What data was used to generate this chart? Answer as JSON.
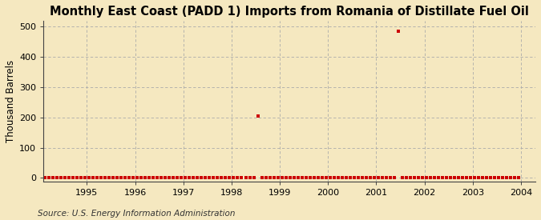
{
  "title": "Monthly East Coast (PADD 1) Imports from Romania of Distillate Fuel Oil",
  "ylabel": "Thousand Barrels",
  "source": "Source: U.S. Energy Information Administration",
  "background_color": "#F5E8C0",
  "plot_bg_color": "#F5E8C0",
  "line_color": "#CC0000",
  "marker": "s",
  "marker_size": 2.5,
  "xlim_left": 1994.1,
  "xlim_right": 2004.3,
  "ylim_bottom": -12,
  "ylim_top": 520,
  "yticks": [
    0,
    100,
    200,
    300,
    400,
    500
  ],
  "xticks": [
    1995,
    1996,
    1997,
    1998,
    1999,
    2000,
    2001,
    2002,
    2003,
    2004
  ],
  "title_fontsize": 10.5,
  "ylabel_fontsize": 8.5,
  "tick_fontsize": 8,
  "source_fontsize": 7.5,
  "data_points": [
    {
      "year": 1994,
      "month": 1,
      "value": 0
    },
    {
      "year": 1994,
      "month": 2,
      "value": 0
    },
    {
      "year": 1994,
      "month": 3,
      "value": 0
    },
    {
      "year": 1994,
      "month": 4,
      "value": 0
    },
    {
      "year": 1994,
      "month": 5,
      "value": 0
    },
    {
      "year": 1994,
      "month": 6,
      "value": 0
    },
    {
      "year": 1994,
      "month": 7,
      "value": 0
    },
    {
      "year": 1994,
      "month": 8,
      "value": 0
    },
    {
      "year": 1994,
      "month": 9,
      "value": 0
    },
    {
      "year": 1994,
      "month": 10,
      "value": 0
    },
    {
      "year": 1994,
      "month": 11,
      "value": 0
    },
    {
      "year": 1994,
      "month": 12,
      "value": 0
    },
    {
      "year": 1995,
      "month": 1,
      "value": 0
    },
    {
      "year": 1995,
      "month": 2,
      "value": 0
    },
    {
      "year": 1995,
      "month": 3,
      "value": 0
    },
    {
      "year": 1995,
      "month": 4,
      "value": 0
    },
    {
      "year": 1995,
      "month": 5,
      "value": 0
    },
    {
      "year": 1995,
      "month": 6,
      "value": 0
    },
    {
      "year": 1995,
      "month": 7,
      "value": 0
    },
    {
      "year": 1995,
      "month": 8,
      "value": 0
    },
    {
      "year": 1995,
      "month": 9,
      "value": 0
    },
    {
      "year": 1995,
      "month": 10,
      "value": 0
    },
    {
      "year": 1995,
      "month": 11,
      "value": 0
    },
    {
      "year": 1995,
      "month": 12,
      "value": 0
    },
    {
      "year": 1996,
      "month": 1,
      "value": 0
    },
    {
      "year": 1996,
      "month": 2,
      "value": 0
    },
    {
      "year": 1996,
      "month": 3,
      "value": 0
    },
    {
      "year": 1996,
      "month": 4,
      "value": 0
    },
    {
      "year": 1996,
      "month": 5,
      "value": 0
    },
    {
      "year": 1996,
      "month": 6,
      "value": 0
    },
    {
      "year": 1996,
      "month": 7,
      "value": 0
    },
    {
      "year": 1996,
      "month": 8,
      "value": 0
    },
    {
      "year": 1996,
      "month": 9,
      "value": 0
    },
    {
      "year": 1996,
      "month": 10,
      "value": 0
    },
    {
      "year": 1996,
      "month": 11,
      "value": 0
    },
    {
      "year": 1996,
      "month": 12,
      "value": 0
    },
    {
      "year": 1997,
      "month": 1,
      "value": 0
    },
    {
      "year": 1997,
      "month": 2,
      "value": 0
    },
    {
      "year": 1997,
      "month": 3,
      "value": 0
    },
    {
      "year": 1997,
      "month": 4,
      "value": 0
    },
    {
      "year": 1997,
      "month": 5,
      "value": 0
    },
    {
      "year": 1997,
      "month": 6,
      "value": 0
    },
    {
      "year": 1997,
      "month": 7,
      "value": 0
    },
    {
      "year": 1997,
      "month": 8,
      "value": 0
    },
    {
      "year": 1997,
      "month": 9,
      "value": 0
    },
    {
      "year": 1997,
      "month": 10,
      "value": 0
    },
    {
      "year": 1997,
      "month": 11,
      "value": 0
    },
    {
      "year": 1997,
      "month": 12,
      "value": 0
    },
    {
      "year": 1998,
      "month": 1,
      "value": 0
    },
    {
      "year": 1998,
      "month": 2,
      "value": 0
    },
    {
      "year": 1998,
      "month": 3,
      "value": 0
    },
    {
      "year": 1998,
      "month": 4,
      "value": 0
    },
    {
      "year": 1998,
      "month": 5,
      "value": 0
    },
    {
      "year": 1998,
      "month": 6,
      "value": 0
    },
    {
      "year": 1998,
      "month": 7,
      "value": 205
    },
    {
      "year": 1998,
      "month": 8,
      "value": 0
    },
    {
      "year": 1998,
      "month": 9,
      "value": 0
    },
    {
      "year": 1998,
      "month": 10,
      "value": 0
    },
    {
      "year": 1998,
      "month": 11,
      "value": 0
    },
    {
      "year": 1998,
      "month": 12,
      "value": 0
    },
    {
      "year": 1999,
      "month": 1,
      "value": 0
    },
    {
      "year": 1999,
      "month": 2,
      "value": 0
    },
    {
      "year": 1999,
      "month": 3,
      "value": 0
    },
    {
      "year": 1999,
      "month": 4,
      "value": 0
    },
    {
      "year": 1999,
      "month": 5,
      "value": 0
    },
    {
      "year": 1999,
      "month": 6,
      "value": 0
    },
    {
      "year": 1999,
      "month": 7,
      "value": 0
    },
    {
      "year": 1999,
      "month": 8,
      "value": 0
    },
    {
      "year": 1999,
      "month": 9,
      "value": 0
    },
    {
      "year": 1999,
      "month": 10,
      "value": 0
    },
    {
      "year": 1999,
      "month": 11,
      "value": 0
    },
    {
      "year": 1999,
      "month": 12,
      "value": 0
    },
    {
      "year": 2000,
      "month": 1,
      "value": 0
    },
    {
      "year": 2000,
      "month": 2,
      "value": 0
    },
    {
      "year": 2000,
      "month": 3,
      "value": 0
    },
    {
      "year": 2000,
      "month": 4,
      "value": 0
    },
    {
      "year": 2000,
      "month": 5,
      "value": 0
    },
    {
      "year": 2000,
      "month": 6,
      "value": 0
    },
    {
      "year": 2000,
      "month": 7,
      "value": 0
    },
    {
      "year": 2000,
      "month": 8,
      "value": 0
    },
    {
      "year": 2000,
      "month": 9,
      "value": 0
    },
    {
      "year": 2000,
      "month": 10,
      "value": 0
    },
    {
      "year": 2000,
      "month": 11,
      "value": 0
    },
    {
      "year": 2000,
      "month": 12,
      "value": 0
    },
    {
      "year": 2001,
      "month": 1,
      "value": 0
    },
    {
      "year": 2001,
      "month": 2,
      "value": 0
    },
    {
      "year": 2001,
      "month": 3,
      "value": 0
    },
    {
      "year": 2001,
      "month": 4,
      "value": 0
    },
    {
      "year": 2001,
      "month": 5,
      "value": 0
    },
    {
      "year": 2001,
      "month": 6,
      "value": 484
    },
    {
      "year": 2001,
      "month": 7,
      "value": 0
    },
    {
      "year": 2001,
      "month": 8,
      "value": 0
    },
    {
      "year": 2001,
      "month": 9,
      "value": 0
    },
    {
      "year": 2001,
      "month": 10,
      "value": 0
    },
    {
      "year": 2001,
      "month": 11,
      "value": 0
    },
    {
      "year": 2001,
      "month": 12,
      "value": 0
    },
    {
      "year": 2002,
      "month": 1,
      "value": 0
    },
    {
      "year": 2002,
      "month": 2,
      "value": 0
    },
    {
      "year": 2002,
      "month": 3,
      "value": 0
    },
    {
      "year": 2002,
      "month": 4,
      "value": 0
    },
    {
      "year": 2002,
      "month": 5,
      "value": 0
    },
    {
      "year": 2002,
      "month": 6,
      "value": 0
    },
    {
      "year": 2002,
      "month": 7,
      "value": 0
    },
    {
      "year": 2002,
      "month": 8,
      "value": 0
    },
    {
      "year": 2002,
      "month": 9,
      "value": 0
    },
    {
      "year": 2002,
      "month": 10,
      "value": 0
    },
    {
      "year": 2002,
      "month": 11,
      "value": 0
    },
    {
      "year": 2002,
      "month": 12,
      "value": 0
    },
    {
      "year": 2003,
      "month": 1,
      "value": 0
    },
    {
      "year": 2003,
      "month": 2,
      "value": 0
    },
    {
      "year": 2003,
      "month": 3,
      "value": 0
    },
    {
      "year": 2003,
      "month": 4,
      "value": 0
    },
    {
      "year": 2003,
      "month": 5,
      "value": 0
    },
    {
      "year": 2003,
      "month": 6,
      "value": 0
    },
    {
      "year": 2003,
      "month": 7,
      "value": 0
    },
    {
      "year": 2003,
      "month": 8,
      "value": 0
    },
    {
      "year": 2003,
      "month": 9,
      "value": 0
    },
    {
      "year": 2003,
      "month": 10,
      "value": 0
    },
    {
      "year": 2003,
      "month": 11,
      "value": 0
    },
    {
      "year": 2003,
      "month": 12,
      "value": 0
    }
  ]
}
